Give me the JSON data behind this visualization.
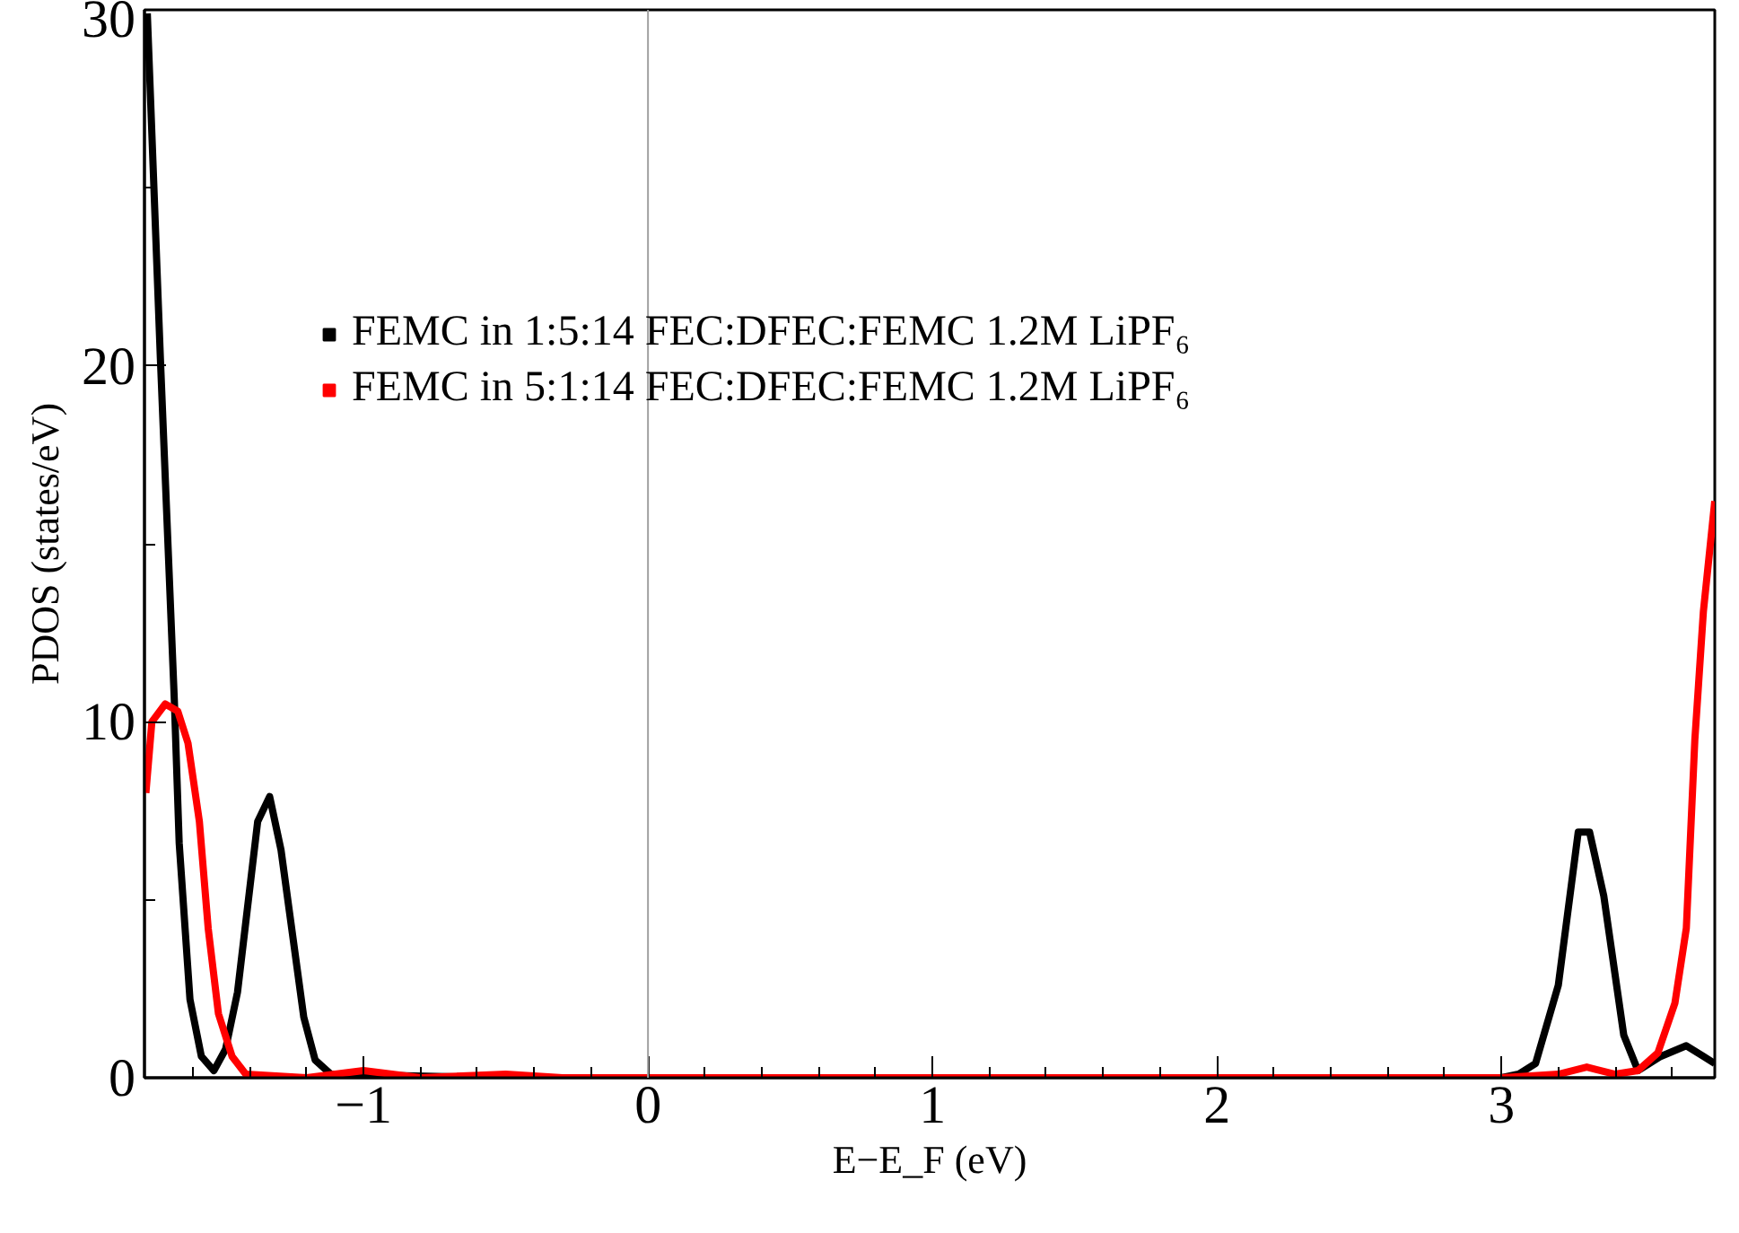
{
  "chart_data": {
    "type": "line",
    "xlabel": "E−E_F (eV)",
    "ylabel": "PDOS (states/eV)",
    "xlim": [
      -1.77,
      3.75
    ],
    "ylim": [
      0,
      30
    ],
    "xticks": [
      -1,
      0,
      1,
      2,
      3
    ],
    "yticks": [
      0,
      10,
      20,
      30
    ],
    "grid": false,
    "legend": "top",
    "marker": "none",
    "line_style": "solid",
    "ref_lines": [
      {
        "axis": "x",
        "value": 0,
        "color": "#a0a0a0"
      }
    ],
    "series": [
      {
        "name": "FEMC in 1:5:14 FEC:DFEC:FEMC 1.2M LiPF₆",
        "color": "#000000",
        "x": [
          -1.76,
          -1.714,
          -1.665,
          -1.648,
          -1.61,
          -1.57,
          -1.526,
          -1.485,
          -1.443,
          -1.372,
          -1.33,
          -1.29,
          -1.21,
          -1.17,
          -1.115,
          -0.5,
          0,
          1,
          2,
          3,
          3.06,
          3.12,
          3.2,
          3.27,
          3.31,
          3.36,
          3.43,
          3.48,
          3.56,
          3.65,
          3.71,
          3.75
        ],
        "values": [
          29.9,
          20.2,
          10.6,
          6.6,
          2.2,
          0.6,
          0.2,
          0.8,
          2.4,
          7.2,
          7.9,
          6.4,
          1.7,
          0.5,
          0.1,
          0,
          0,
          0,
          0,
          0,
          0.1,
          0.4,
          2.6,
          6.9,
          6.9,
          5.1,
          1.2,
          0.2,
          0.6,
          0.9,
          0.6,
          0.4
        ]
      },
      {
        "name": "FEMC in 5:1:14 FEC:DFEC:FEMC 1.2M LiPF₆",
        "color": "#ff0000",
        "x": [
          -1.765,
          -1.744,
          -1.697,
          -1.653,
          -1.617,
          -1.577,
          -1.546,
          -1.51,
          -1.462,
          -1.414,
          -1.2,
          -1.0,
          -0.8,
          -0.5,
          -0.3,
          0,
          1,
          2,
          3,
          3.2,
          3.3,
          3.4,
          3.48,
          3.55,
          3.61,
          3.65,
          3.68,
          3.71,
          3.75
        ],
        "values": [
          8.0,
          10.0,
          10.5,
          10.3,
          9.4,
          7.2,
          4.2,
          1.8,
          0.6,
          0.1,
          0,
          0.2,
          0,
          0.1,
          0,
          0,
          0,
          0,
          0,
          0.1,
          0.3,
          0.1,
          0.2,
          0.7,
          2.1,
          4.2,
          9.5,
          13.1,
          16.2
        ]
      }
    ]
  }
}
